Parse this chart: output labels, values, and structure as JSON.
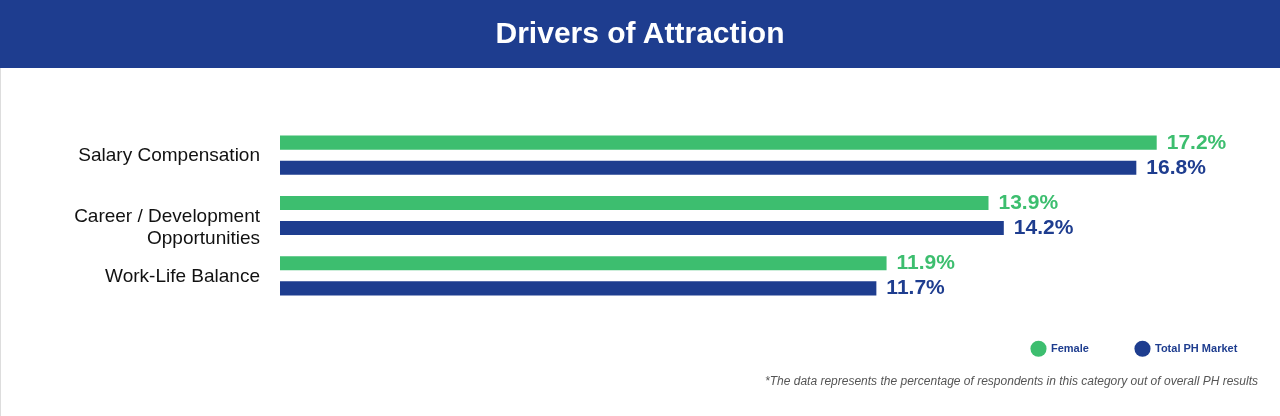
{
  "chart_data": {
    "type": "bar",
    "orientation": "horizontal",
    "title": "Drivers of Attraction",
    "categories": [
      "Salary Compensation",
      "Career / Development Opportunities",
      "Work-Life Balance"
    ],
    "series": [
      {
        "name": "Female",
        "color": "#3dbe6f",
        "values": [
          17.2,
          13.9,
          11.9
        ],
        "value_labels": [
          "17.2%",
          "13.9%",
          "11.9%"
        ]
      },
      {
        "name": "Total PH Market",
        "color": "#1e3d8f",
        "values": [
          16.8,
          14.2,
          11.7
        ],
        "value_labels": [
          "16.8%",
          "14.2%",
          "11.7%"
        ]
      }
    ],
    "legend": "bottom right",
    "tick_labels": false,
    "annotations": [
      "*The data represents the percentage of respondents in this category out of overall PH results"
    ]
  }
}
